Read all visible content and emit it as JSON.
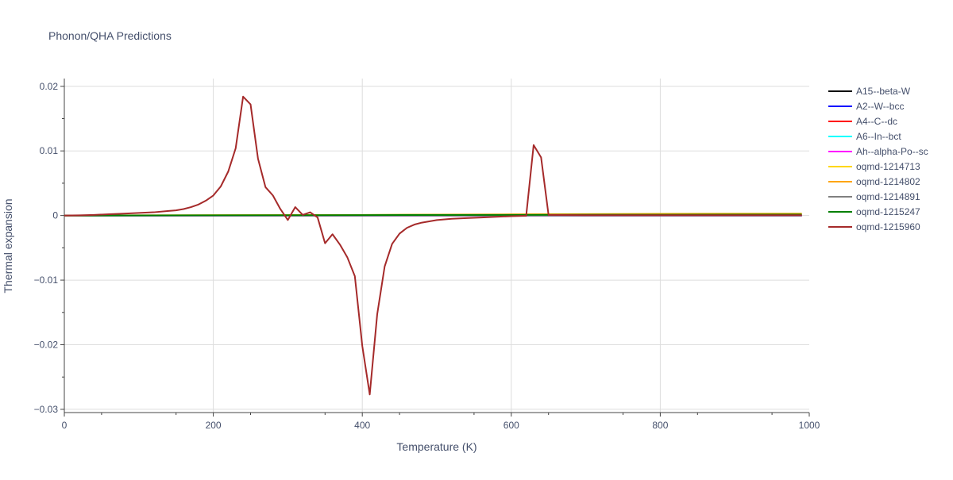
{
  "chart_data": {
    "type": "line",
    "title": "Phonon/QHA Predictions",
    "xlabel": "Temperature (K)",
    "ylabel": "Thermal expansion",
    "xlim": [
      0,
      1000
    ],
    "ylim": [
      -0.0305,
      0.0212
    ],
    "x_ticks": [
      {
        "value": 0,
        "label": "0"
      },
      {
        "value": 200,
        "label": "200"
      },
      {
        "value": 400,
        "label": "400"
      },
      {
        "value": 600,
        "label": "600"
      },
      {
        "value": 800,
        "label": "800"
      },
      {
        "value": 1000,
        "label": "1000"
      }
    ],
    "y_ticks": [
      {
        "value": 0.02,
        "label": "0.02"
      },
      {
        "value": 0.01,
        "label": "0.01"
      },
      {
        "value": 0,
        "label": "0"
      },
      {
        "value": -0.01,
        "label": "−0.01"
      },
      {
        "value": -0.02,
        "label": "−0.02"
      },
      {
        "value": -0.03,
        "label": "−0.03"
      }
    ],
    "grid": true,
    "legend_position": "right",
    "series": [
      {
        "name": "A15--beta-W",
        "color": "#000000",
        "x": [
          0,
          990
        ],
        "y": [
          0.0,
          0.0
        ]
      },
      {
        "name": "A2--W--bcc",
        "color": "#0000ff",
        "x": [
          0,
          990
        ],
        "y": [
          0.0,
          0.0
        ]
      },
      {
        "name": "A4--C--dc",
        "color": "#ff0000",
        "x": [
          0,
          990
        ],
        "y": [
          0.0,
          0.0
        ]
      },
      {
        "name": "A6--In--bct",
        "color": "#00ffff",
        "x": [
          0,
          990
        ],
        "y": [
          0.0,
          0.0
        ]
      },
      {
        "name": "Ah--alpha-Po--sc",
        "color": "#ff00ff",
        "x": [
          0,
          990
        ],
        "y": [
          0.0,
          0.0
        ]
      },
      {
        "name": "oqmd-1214713",
        "color": "#ffd700",
        "x": [
          0,
          200,
          400,
          600,
          800,
          990
        ],
        "y": [
          0.0,
          4e-05,
          8e-05,
          0.00014,
          0.0002,
          0.00024
        ]
      },
      {
        "name": "oqmd-1214802",
        "color": "#ffa500",
        "x": [
          0,
          200,
          400,
          600,
          800,
          990
        ],
        "y": [
          0.0,
          5e-05,
          0.0001,
          0.00018,
          0.00026,
          0.0003
        ]
      },
      {
        "name": "oqmd-1214891",
        "color": "#808080",
        "x": [
          0,
          990
        ],
        "y": [
          0.0,
          0.0
        ]
      },
      {
        "name": "oqmd-1215247",
        "color": "#008000",
        "x": [
          0,
          200,
          400,
          600,
          800,
          990
        ],
        "y": [
          0.0,
          3e-05,
          6e-05,
          0.0001,
          0.00013,
          0.00015
        ]
      },
      {
        "name": "oqmd-1215960",
        "color": "#a52a2a",
        "x": [
          0,
          20,
          40,
          60,
          80,
          100,
          120,
          140,
          150,
          160,
          170,
          180,
          190,
          200,
          210,
          220,
          230,
          240,
          250,
          260,
          270,
          280,
          290,
          300,
          310,
          320,
          330,
          340,
          350,
          360,
          370,
          380,
          390,
          400,
          410,
          420,
          430,
          440,
          450,
          460,
          470,
          480,
          500,
          520,
          540,
          560,
          580,
          600,
          620,
          630,
          640,
          650,
          700,
          800,
          900,
          990
        ],
        "y": [
          0.0,
          3e-05,
          0.0001,
          0.0002,
          0.0003,
          0.0004,
          0.0005,
          0.0007,
          0.0008,
          0.001,
          0.0013,
          0.0017,
          0.0023,
          0.0031,
          0.0045,
          0.0068,
          0.0104,
          0.0184,
          0.0172,
          0.0088,
          0.0044,
          0.0031,
          0.001,
          -0.0007,
          0.0013,
          0.0001,
          0.0005,
          -0.0003,
          -0.0043,
          -0.0029,
          -0.0045,
          -0.0065,
          -0.0094,
          -0.0202,
          -0.0277,
          -0.0153,
          -0.0079,
          -0.0044,
          -0.0028,
          -0.0019,
          -0.0014,
          -0.0011,
          -0.0007,
          -0.0005,
          -0.0004,
          -0.0003,
          -0.0002,
          -0.0001,
          -5e-05,
          0.0109,
          0.009,
          0.0001,
          5e-05,
          5e-05,
          5e-05,
          5e-05
        ]
      }
    ]
  }
}
